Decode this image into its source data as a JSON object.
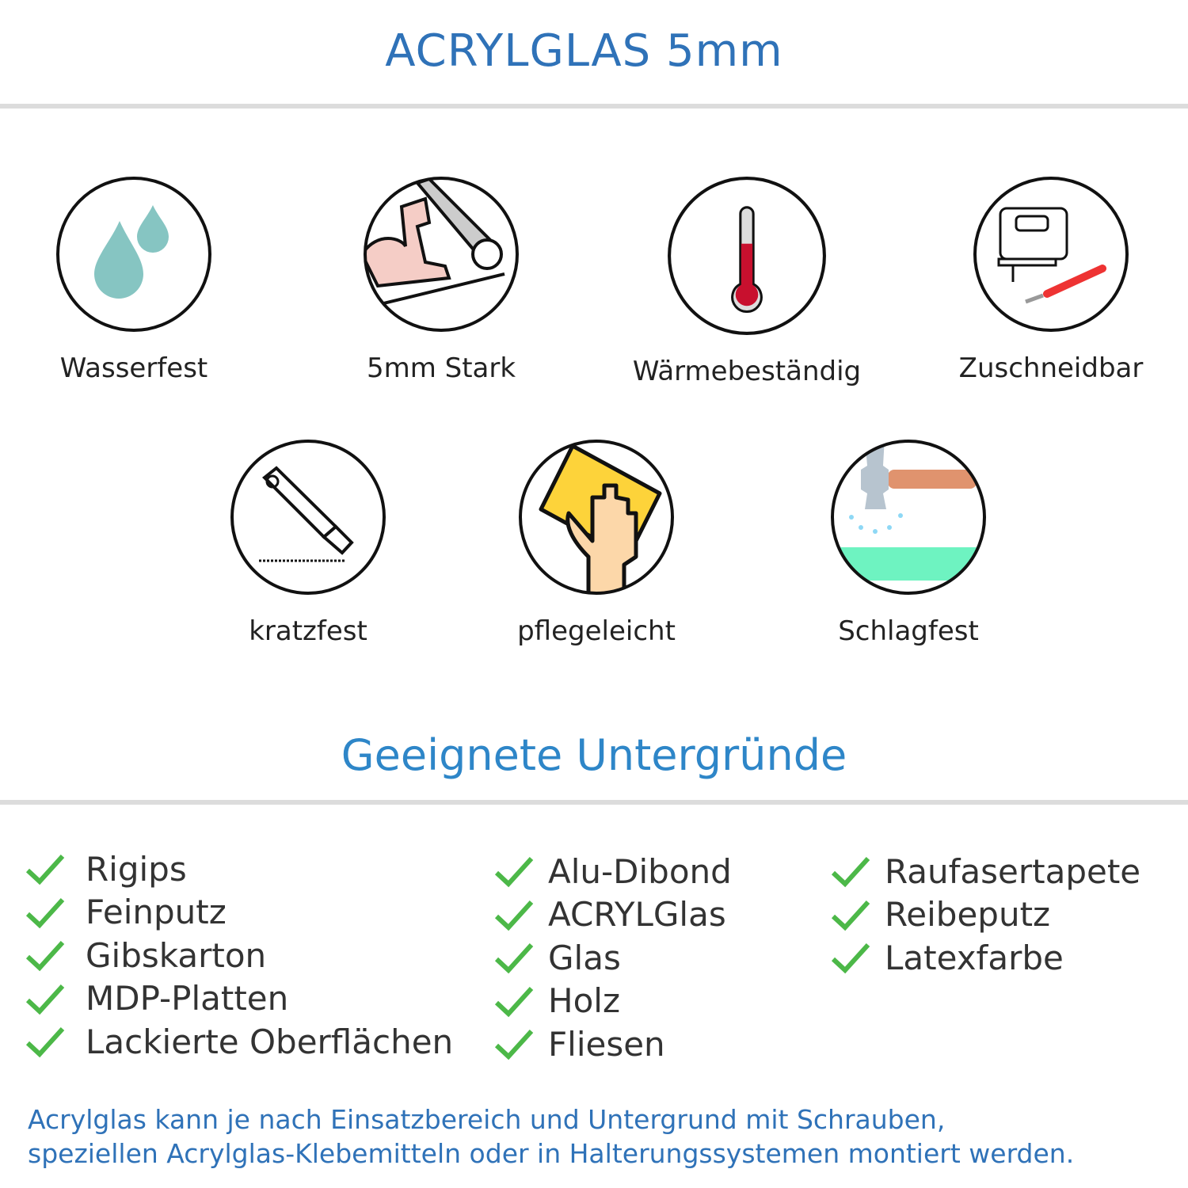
{
  "header": {
    "title": "ACRYLGLAS 5mm"
  },
  "features": [
    {
      "label": "Wasserfest",
      "icon": "water-drops-icon"
    },
    {
      "label": "5mm Stark",
      "icon": "strong-arm-icon"
    },
    {
      "label": "Wärmebeständig",
      "icon": "thermometer-icon"
    },
    {
      "label": "Zuschneidbar",
      "icon": "jigsaw-cutter-icon"
    },
    {
      "label": "kratzfest",
      "icon": "utility-knife-icon"
    },
    {
      "label": "pflegeleicht",
      "icon": "hand-cloth-icon"
    },
    {
      "label": "Schlagfest",
      "icon": "hammer-icon"
    }
  ],
  "surfaces": {
    "title": "Geeignete Untergründe",
    "columns": [
      [
        "Rigips",
        "Feinputz",
        "Gibskarton",
        "MDP-Platten",
        "Lackierte Oberflächen"
      ],
      [
        "Alu-Dibond",
        "ACRYLGlas",
        "Glas",
        "Holz",
        "Fliesen"
      ],
      [
        "Raufasertapete",
        "Reibeputz",
        "Latexfarbe"
      ]
    ],
    "check_color": "#4cb848"
  },
  "footer": {
    "lines": [
      "Acrylglas kann je nach Einsatzbereich und Untergrund mit Schrauben,",
      "speziellen Acrylglas-Klebemitteln oder in Halterungssystemen montiert werden."
    ]
  },
  "colors": {
    "title": "#2f72b8",
    "heading": "#2e86c8"
  }
}
